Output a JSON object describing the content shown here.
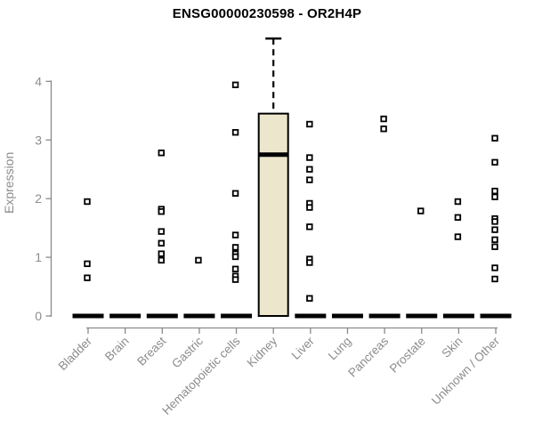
{
  "chart_data": {
    "type": "boxplot",
    "title": "ENSG00000230598 - OR2H4P",
    "ylabel": "Expression",
    "ylim": [
      0,
      4
    ],
    "yticks": [
      0,
      1,
      2,
      3,
      4
    ],
    "grid": false,
    "legend": "none",
    "series": [
      {
        "category": "Bladder",
        "zero_bar": true,
        "points": [
          1.95,
          0.89,
          0.65
        ]
      },
      {
        "category": "Brain",
        "zero_bar": true,
        "points": []
      },
      {
        "category": "Breast",
        "zero_bar": true,
        "points": [
          2.78,
          1.82,
          1.78,
          1.44,
          1.24,
          1.06,
          0.95
        ]
      },
      {
        "category": "Gastric",
        "zero_bar": true,
        "points": [
          0.95
        ]
      },
      {
        "category": "Hematopoietic cells",
        "zero_bar": true,
        "points": [
          3.94,
          3.13,
          2.09,
          1.38,
          1.17,
          1.06,
          1.01,
          0.8,
          0.68,
          0.62
        ]
      },
      {
        "category": "Kidney",
        "zero_bar": false,
        "points": [],
        "box": {
          "q1": 0,
          "median": 2.75,
          "q3": 3.45,
          "whisker_low": 0,
          "whisker_high": 4.73
        }
      },
      {
        "category": "Liver",
        "zero_bar": true,
        "points": [
          3.27,
          2.7,
          2.5,
          2.32,
          1.92,
          1.85,
          1.52,
          0.97,
          0.91,
          0.3
        ]
      },
      {
        "category": "Lung",
        "zero_bar": true,
        "points": []
      },
      {
        "category": "Pancreas",
        "zero_bar": true,
        "points": [
          3.36,
          3.19
        ]
      },
      {
        "category": "Prostate",
        "zero_bar": true,
        "points": [
          1.79
        ]
      },
      {
        "category": "Skin",
        "zero_bar": true,
        "points": [
          1.95,
          1.68,
          1.35
        ]
      },
      {
        "category": "Unknown / Other",
        "zero_bar": true,
        "points": [
          3.03,
          2.62,
          2.13,
          2.03,
          1.66,
          1.61,
          1.47,
          1.3,
          1.18,
          0.82,
          0.63
        ]
      }
    ],
    "colors": {
      "box_fill": "#ece6cc",
      "box_border": "#000000",
      "median": "#000000",
      "zero_bar": "#000000",
      "point_fill": "#ffffff",
      "point_stroke": "#000000",
      "axis": "#8a8a8a",
      "tick_label": "#8c8c8c",
      "title": "#000000",
      "background": "#ffffff"
    }
  }
}
